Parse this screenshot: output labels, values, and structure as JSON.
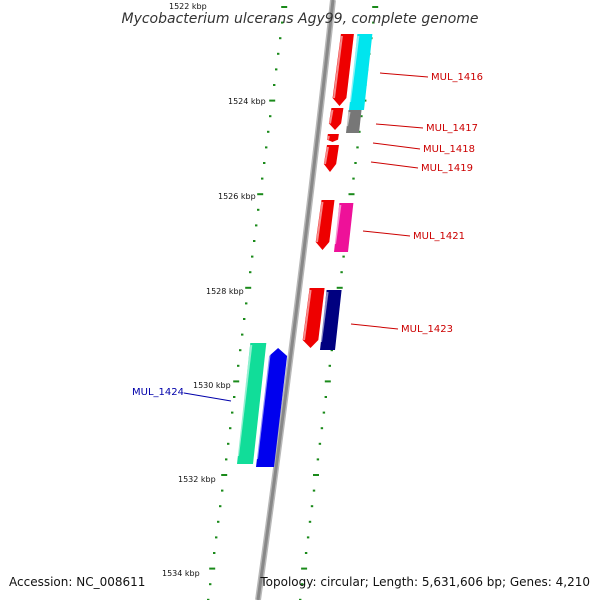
{
  "title": "Mycobacterium ulcerans Agy99, complete genome",
  "accession": "Accession: NC_008611",
  "summary": "Topology: circular; Length: 5,631,606 bp; Genes: 4,210",
  "kbp_ticks": [
    "1522 kbp",
    "1524 kbp",
    "1526 kbp",
    "1528 kbp",
    "1530 kbp",
    "1532 kbp",
    "1534 kbp"
  ],
  "gene_labels": [
    {
      "text": "MUL_1416",
      "color": "#cc0000"
    },
    {
      "text": "MUL_1417",
      "color": "#cc0000"
    },
    {
      "text": "MUL_1418",
      "color": "#cc0000"
    },
    {
      "text": "MUL_1419",
      "color": "#cc0000"
    },
    {
      "text": "MUL_1421",
      "color": "#cc0000"
    },
    {
      "text": "MUL_1423",
      "color": "#cc0000"
    },
    {
      "text": "MUL_1424",
      "color": "#0000aa"
    }
  ],
  "colors": {
    "backbone": "#888888",
    "tick_dots": "#1a8a1a",
    "red_gene": "#ee0000",
    "cyan_gene": "#00e5ee",
    "gray_gene": "#777777",
    "magenta_gene": "#ee1199",
    "navy_gene": "#000080",
    "teal_gene": "#11dd99",
    "blue_gene": "#0000ee"
  }
}
